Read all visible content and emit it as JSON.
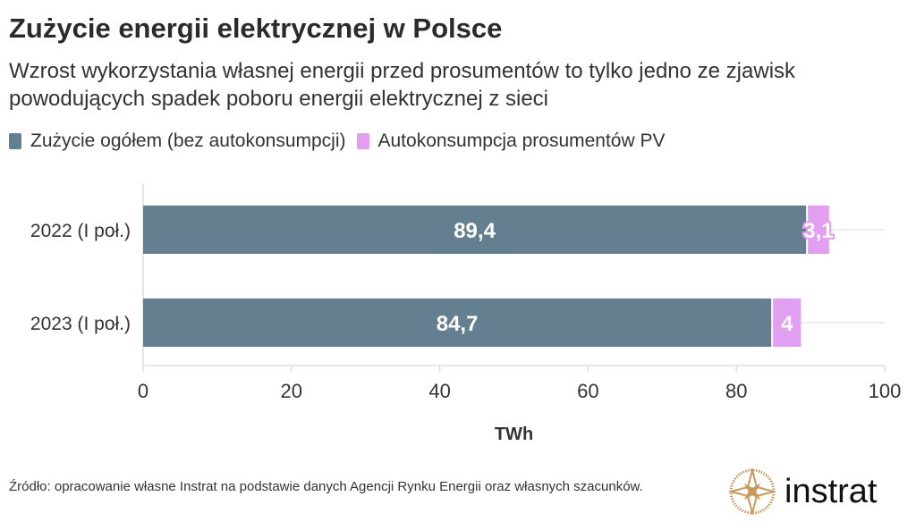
{
  "title": "Zużycie energii elektrycznej w Polsce",
  "subtitle": "Wzrost wykorzystania własnej energii przed prosumentów to tylko jedno ze zjawisk powodujących spadek poboru energii elektrycznej z sieci",
  "source": "Źródło: opracowanie własne Instrat na podstawie danych Agencji Rynku Energii oraz własnych szacunków.",
  "logo_text": "instrat",
  "colors": {
    "total": "#647f8f",
    "pv": "#e29ff2"
  },
  "chart_data": {
    "type": "bar",
    "orientation": "horizontal",
    "stacked": true,
    "categories": [
      "2022 (I poł.)",
      "2023 (I poł.)"
    ],
    "series": [
      {
        "name": "Zużycie ogółem (bez autokonsumpcji)",
        "values": [
          89.4,
          84.7
        ],
        "labels": [
          "89,4",
          "84,7"
        ]
      },
      {
        "name": "Autokonsumpcja prosumentów PV",
        "values": [
          3.1,
          4
        ],
        "labels": [
          "3,1",
          "4"
        ]
      }
    ],
    "xlabel": "TWh",
    "xlim": [
      0,
      100
    ],
    "xticks": [
      0,
      20,
      40,
      60,
      80,
      100
    ],
    "legend": "top-left"
  }
}
